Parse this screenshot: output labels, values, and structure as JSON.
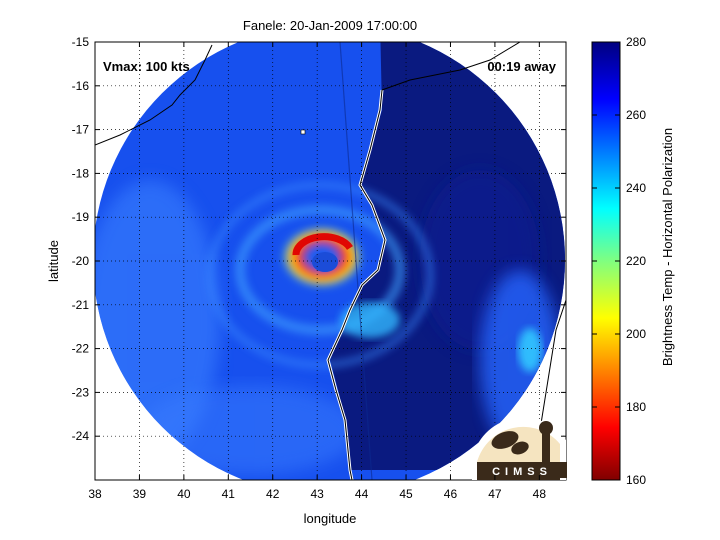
{
  "chart_data": {
    "type": "heatmap",
    "title": "Fanele: 20-Jan-2009 17:00:00",
    "xlabel": "longitude",
    "ylabel": "latitude",
    "xlim": [
      38,
      48.6
    ],
    "ylim": [
      -25,
      -15
    ],
    "xticks": [
      38,
      39,
      40,
      41,
      42,
      43,
      44,
      45,
      46,
      47,
      48
    ],
    "yticks": [
      -15,
      -16,
      -17,
      -18,
      -19,
      -20,
      -21,
      -22,
      -23,
      -24
    ],
    "grid": true,
    "annotations": {
      "vmax": "Vmax: 100 kts",
      "time_away": "00:19 away"
    },
    "colorbar": {
      "label": "Brightness Temp - Horizontal Polarization",
      "min": 160,
      "max": 280,
      "ticks": [
        160,
        180,
        200,
        220,
        240,
        260,
        280
      ],
      "colormap": "jet"
    },
    "swath": {
      "center_lon": 43.3,
      "center_lat": -19.8,
      "radius_lon": 5.3
    },
    "eye": {
      "lon": 42.9,
      "lat": -19.9,
      "min_temp": 168
    },
    "logo": {
      "text": "CIMSS"
    }
  },
  "colors": {
    "land_background": "#0a1a80",
    "ocean_background": "#1750ee",
    "coastline": "#000000"
  }
}
